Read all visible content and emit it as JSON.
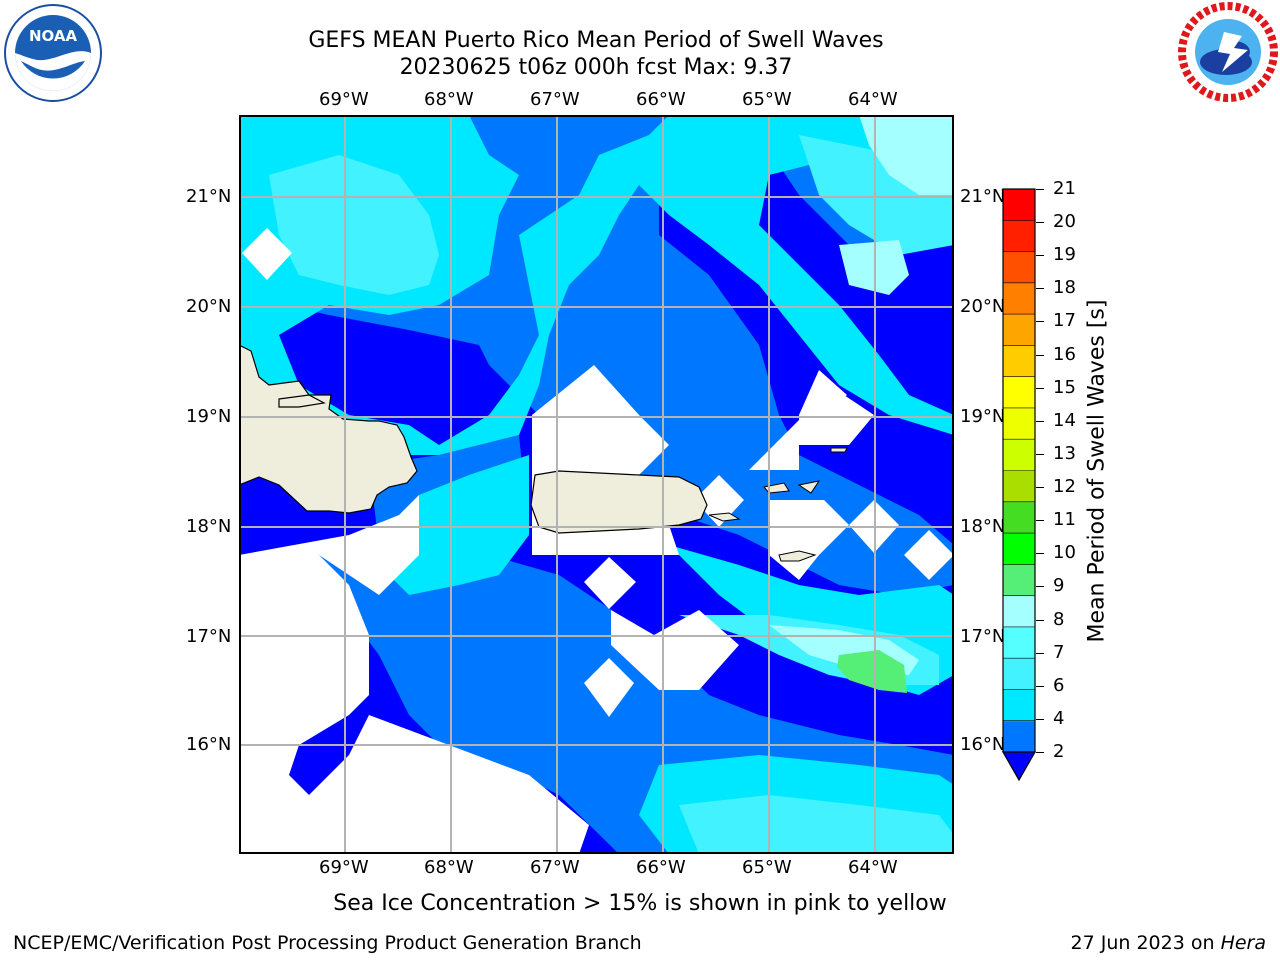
{
  "title": {
    "line1": "GEFS MEAN Puerto Rico Mean Period of Swell Waves",
    "line2": "20230625 t06z 000h fcst   Max: 9.37"
  },
  "logos": {
    "left": {
      "name": "noaa-logo",
      "text": "NOAA",
      "ring_text": "NATIONAL OCEANIC AND ATMOSPHERIC ADMINISTRATION · U.S. DEPARTMENT OF COMMERCE"
    },
    "right": {
      "name": "nws-logo",
      "ring_text": "NATIONAL WEATHER SERVICE"
    }
  },
  "map": {
    "region": "Puerto Rico",
    "lon_labels": [
      "69°W",
      "68°W",
      "67°W",
      "66°W",
      "65°W",
      "64°W"
    ],
    "lat_labels": [
      "21°N",
      "20°N",
      "19°N",
      "18°N",
      "17°N",
      "16°N"
    ],
    "colors": {
      "land": "#efeedd",
      "no_data": "#ffffff",
      "gridline": "#b3b3b3"
    }
  },
  "colorbar": {
    "label": "Mean Period of Swell Waves [s]",
    "ticks": [
      "2",
      "4",
      "6",
      "7",
      "8",
      "9",
      "10",
      "11",
      "12",
      "13",
      "14",
      "15",
      "16",
      "17",
      "18",
      "19",
      "20",
      "21"
    ],
    "colors": [
      "#0000ff",
      "#0077ff",
      "#00e8ff",
      "#42f2ff",
      "#55ffff",
      "#a4ffff",
      "#55ee77",
      "#00ff00",
      "#44dd22",
      "#aadd00",
      "#ccff00",
      "#eeff00",
      "#ffff00",
      "#ffcc00",
      "#ffa500",
      "#ff8000",
      "#ff5000",
      "#ff2000",
      "#ff0000"
    ]
  },
  "caption": "Sea Ice Concentration > 15% is shown in pink to yellow",
  "footer": {
    "left": "NCEP/EMC/Verification Post Processing Product Generation Branch",
    "right_date": "27 Jun 2023 on ",
    "right_host": "Hera"
  }
}
